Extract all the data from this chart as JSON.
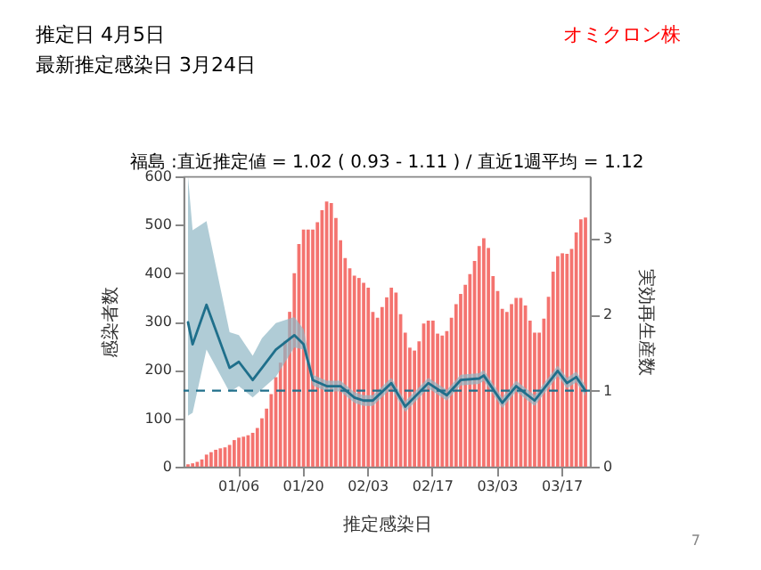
{
  "chart_data": {
    "type": "bar",
    "title": "福島 :直近推定値 = 1.02 ( 0.93 - 1.11 ) / 直近1週平均 = 1.12",
    "xlabel": "推定感染日",
    "ylabel": "感染者数",
    "y2label": "実効再生産数",
    "annotations": [
      "推定日  4月5日",
      "最新推定感染日  3月24日",
      "オミクロン株",
      "7"
    ],
    "categories": [
      null,
      null,
      null,
      null,
      null,
      null,
      null,
      null,
      null,
      null,
      null,
      "01/06",
      null,
      null,
      null,
      null,
      null,
      null,
      null,
      null,
      null,
      null,
      null,
      null,
      null,
      "01/20",
      null,
      null,
      null,
      null,
      null,
      null,
      null,
      null,
      null,
      null,
      null,
      null,
      null,
      "02/03",
      null,
      null,
      null,
      null,
      null,
      null,
      null,
      null,
      null,
      null,
      null,
      null,
      null,
      "02/17",
      null,
      null,
      null,
      null,
      null,
      null,
      null,
      null,
      null,
      null,
      null,
      null,
      null,
      "03/03",
      null,
      null,
      null,
      null,
      null,
      null,
      null,
      null,
      null,
      null,
      null,
      null,
      null,
      "03/17",
      null,
      null,
      null,
      null,
      null
    ],
    "series": [
      {
        "color": "#f4736f",
        "values": [
          5,
          7,
          10,
          15,
          25,
          30,
          35,
          38,
          40,
          45,
          55,
          60,
          62,
          65,
          70,
          80,
          100,
          120,
          150,
          185,
          215,
          260,
          320,
          400,
          460,
          490,
          490,
          490,
          505,
          530,
          548,
          545,
          514,
          468,
          431,
          410,
          395,
          390,
          380,
          370,
          320,
          308,
          330,
          350,
          370,
          360,
          315,
          277,
          246,
          240,
          259,
          296,
          302,
          302,
          275,
          271,
          280,
          308,
          336,
          357,
          376,
          398,
          425,
          456,
          472,
          452,
          394,
          363,
          326,
          320,
          336,
          349,
          349,
          333,
          302,
          277,
          277,
          306,
          351,
          403,
          435,
          441,
          440,
          450,
          484,
          511,
          515
        ]
      },
      {
        "type": "line",
        "axis": "y2",
        "color": "#1f6f8b",
        "values": [
          1.9,
          1.61,
          null,
          null,
          2.13,
          null,
          null,
          null,
          null,
          1.3,
          null,
          1.38,
          null,
          null,
          1.14,
          null,
          1.3,
          null,
          null,
          1.54,
          null,
          null,
          null,
          1.73,
          null,
          1.61,
          null,
          1.14,
          null,
          null,
          1.06,
          null,
          null,
          1.06,
          null,
          null,
          0.91,
          null,
          0.87,
          null,
          0.87,
          null,
          null,
          null,
          1.1,
          null,
          null,
          0.79,
          null,
          null,
          null,
          null,
          1.1,
          null,
          null,
          null,
          0.94,
          null,
          null,
          1.14,
          null,
          null,
          null,
          1.16,
          1.2,
          null,
          null,
          null,
          0.84,
          null,
          null,
          1.06,
          null,
          null,
          null,
          0.87,
          null,
          null,
          null,
          null,
          1.26,
          null,
          1.1,
          null,
          1.18,
          null,
          1.0
        ],
        "lower": [
          0.67,
          0.71,
          null,
          null,
          1.54,
          null,
          null,
          null,
          null,
          0.98,
          null,
          1.06,
          null,
          null,
          0.91,
          null,
          1.02,
          null,
          null,
          1.18,
          null,
          null,
          null,
          1.57,
          null,
          1.54,
          null,
          1.07,
          null,
          null,
          0.99,
          null,
          null,
          0.99,
          null,
          null,
          0.84,
          null,
          0.8,
          null,
          0.8,
          null,
          null,
          null,
          1.03,
          null,
          null,
          0.72,
          null,
          null,
          null,
          null,
          1.03,
          null,
          null,
          null,
          0.87,
          null,
          null,
          1.07,
          null,
          null,
          null,
          1.09,
          1.13,
          null,
          null,
          null,
          0.77,
          null,
          null,
          0.99,
          null,
          null,
          null,
          0.8,
          null,
          null,
          null,
          null,
          1.19,
          null,
          1.03,
          null,
          1.11,
          null,
          0.93
        ],
        "upper": [
          3.82,
          3.11,
          null,
          null,
          3.23,
          null,
          null,
          null,
          null,
          1.77,
          null,
          1.73,
          null,
          null,
          1.46,
          null,
          1.69,
          null,
          null,
          1.89,
          null,
          null,
          null,
          1.97,
          null,
          1.81,
          null,
          1.21,
          null,
          null,
          1.13,
          null,
          null,
          1.13,
          null,
          null,
          0.98,
          null,
          0.94,
          null,
          0.94,
          null,
          null,
          null,
          1.17,
          null,
          null,
          0.86,
          null,
          null,
          null,
          null,
          1.17,
          null,
          null,
          null,
          1.01,
          null,
          null,
          1.21,
          null,
          null,
          null,
          1.23,
          1.27,
          null,
          null,
          null,
          0.91,
          null,
          null,
          1.13,
          null,
          null,
          null,
          0.94,
          null,
          null,
          null,
          null,
          1.33,
          null,
          1.17,
          null,
          1.25,
          null,
          1.07
        ]
      }
    ],
    "ylim": [
      0,
      600
    ],
    "yticks": [
      0,
      100,
      200,
      300,
      400,
      500,
      600
    ],
    "y2lim": [
      0,
      3.82
    ],
    "y2ticks": [
      0,
      1,
      2,
      3
    ],
    "ref_lines": [
      {
        "axis": "y2",
        "value": 1,
        "color": "#1f6f8b",
        "line_style": "dashed"
      }
    ],
    "grid": false
  }
}
